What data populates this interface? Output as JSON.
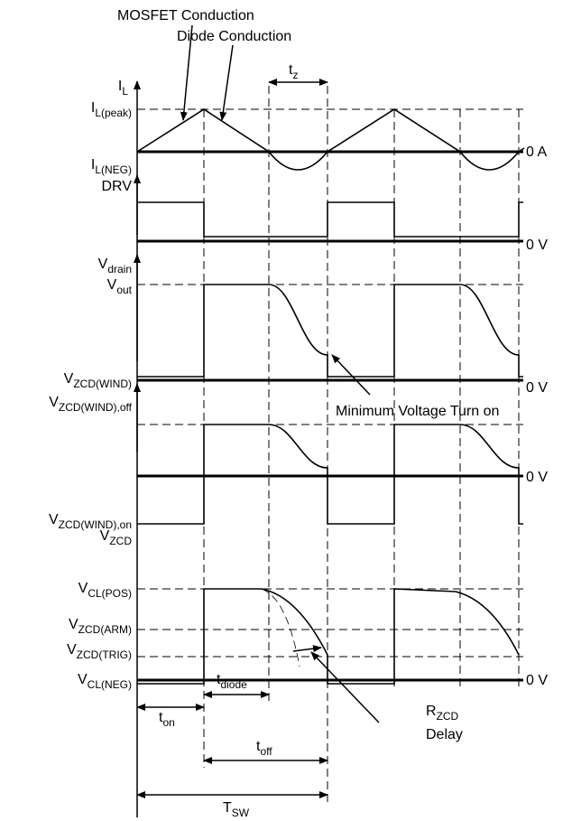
{
  "annotations": {
    "mosfet": "MOSFET Conduction",
    "diode": "Diode Conduction",
    "min_voltage": "Minimum Voltage Turn on",
    "rzcd": {
      "main": "R",
      "sub": "ZCD"
    },
    "delay": "Delay"
  },
  "signal_labels": [
    {
      "main": "I",
      "sub": "L"
    },
    {
      "main": "I",
      "sub": "L(peak)"
    },
    {
      "main": "I",
      "sub": "L(NEG)"
    },
    {
      "main": "DRV"
    },
    {
      "main": "V",
      "sub": "drain"
    },
    {
      "main": "V",
      "sub": "out"
    },
    {
      "main": "V",
      "sub": "ZCD(WIND)"
    },
    {
      "main": "V",
      "sub": "ZCD(WIND),off"
    },
    {
      "main": "V",
      "sub": "ZCD(WIND),on"
    },
    {
      "main": "V",
      "sub": "ZCD"
    },
    {
      "main": "V",
      "sub": "CL(POS)"
    },
    {
      "main": "V",
      "sub": "ZCD(ARM)"
    },
    {
      "main": "V",
      "sub": "ZCD(TRIG)"
    },
    {
      "main": "V",
      "sub": "CL(NEG)"
    }
  ],
  "zero_labels": [
    "0 A",
    "0 V",
    "0 V",
    "0 V",
    "0 V"
  ],
  "timing": [
    {
      "main": "t",
      "sub": "z"
    },
    {
      "main": "t",
      "sub": "on"
    },
    {
      "main": "t",
      "sub": "diode"
    },
    {
      "main": "t",
      "sub": "off"
    },
    {
      "main": "T",
      "sub": "SW"
    }
  ]
}
